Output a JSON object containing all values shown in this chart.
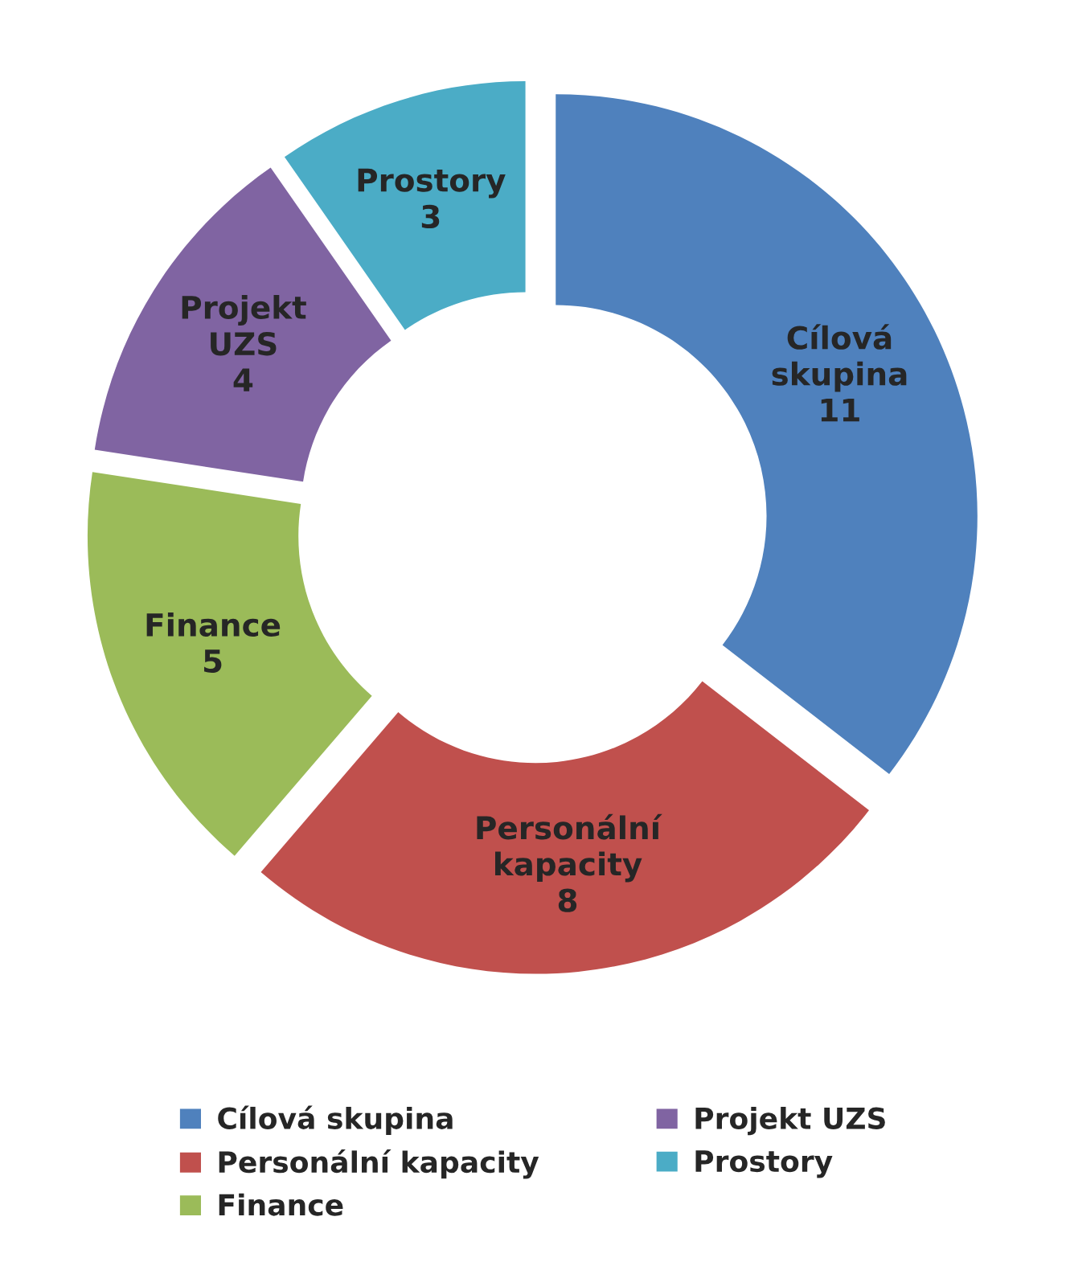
{
  "chart_data": {
    "type": "donut",
    "categories": [
      "Cílová skupina",
      "Personální kapacity",
      "Finance",
      "Projekt UZS",
      "Prostory"
    ],
    "values": [
      11,
      8,
      5,
      4,
      3
    ],
    "colors": [
      "#4f81bd",
      "#c0504d",
      "#9bbb59",
      "#8064a2",
      "#4bacc6"
    ],
    "data_labels": true,
    "legend": "bottom"
  }
}
